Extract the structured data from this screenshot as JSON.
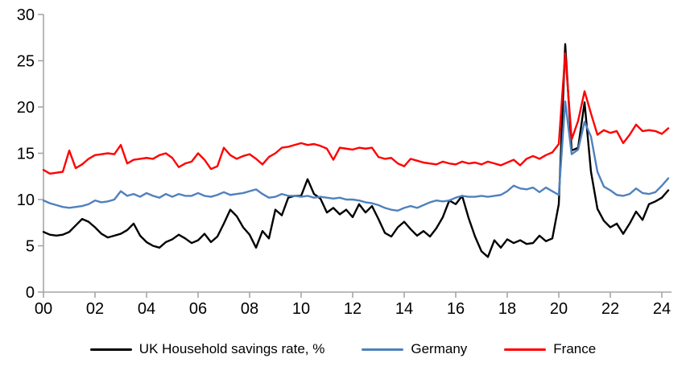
{
  "chart_data": {
    "type": "line",
    "title": "",
    "xlabel": "",
    "ylabel": "",
    "grid": false,
    "legend_position": "bottom",
    "x_axis": {
      "tick_labels": [
        "00",
        "02",
        "04",
        "06",
        "08",
        "10",
        "12",
        "14",
        "16",
        "18",
        "20",
        "22",
        "24"
      ],
      "tick_years": [
        2000,
        2002,
        2004,
        2006,
        2008,
        2010,
        2012,
        2014,
        2016,
        2018,
        2020,
        2022,
        2024
      ]
    },
    "y_axis": {
      "ticks": [
        0,
        5,
        10,
        15,
        20,
        25,
        30
      ],
      "ylim": [
        0,
        30
      ]
    },
    "frequency": "quarterly",
    "start_year": 2000,
    "categories": [
      "2000Q1",
      "2000Q2",
      "2000Q3",
      "2000Q4",
      "2001Q1",
      "2001Q2",
      "2001Q3",
      "2001Q4",
      "2002Q1",
      "2002Q2",
      "2002Q3",
      "2002Q4",
      "2003Q1",
      "2003Q2",
      "2003Q3",
      "2003Q4",
      "2004Q1",
      "2004Q2",
      "2004Q3",
      "2004Q4",
      "2005Q1",
      "2005Q2",
      "2005Q3",
      "2005Q4",
      "2006Q1",
      "2006Q2",
      "2006Q3",
      "2006Q4",
      "2007Q1",
      "2007Q2",
      "2007Q3",
      "2007Q4",
      "2008Q1",
      "2008Q2",
      "2008Q3",
      "2008Q4",
      "2009Q1",
      "2009Q2",
      "2009Q3",
      "2009Q4",
      "2010Q1",
      "2010Q2",
      "2010Q3",
      "2010Q4",
      "2011Q1",
      "2011Q2",
      "2011Q3",
      "2011Q4",
      "2012Q1",
      "2012Q2",
      "2012Q3",
      "2012Q4",
      "2013Q1",
      "2013Q2",
      "2013Q3",
      "2013Q4",
      "2014Q1",
      "2014Q2",
      "2014Q3",
      "2014Q4",
      "2015Q1",
      "2015Q2",
      "2015Q3",
      "2015Q4",
      "2016Q1",
      "2016Q2",
      "2016Q3",
      "2016Q4",
      "2017Q1",
      "2017Q2",
      "2017Q3",
      "2017Q4",
      "2018Q1",
      "2018Q2",
      "2018Q3",
      "2018Q4",
      "2019Q1",
      "2019Q2",
      "2019Q3",
      "2019Q4",
      "2020Q1",
      "2020Q2",
      "2020Q3",
      "2020Q4",
      "2021Q1",
      "2021Q2",
      "2021Q3",
      "2021Q4",
      "2022Q1",
      "2022Q2",
      "2022Q3",
      "2022Q4",
      "2023Q1",
      "2023Q2",
      "2023Q3",
      "2023Q4",
      "2024Q1",
      "2024Q2"
    ],
    "series": [
      {
        "name": "UK Household savings rate, %",
        "color": "#000000",
        "values": [
          6.5,
          6.2,
          6.1,
          6.2,
          6.5,
          7.2,
          7.9,
          7.6,
          7.0,
          6.3,
          5.9,
          6.1,
          6.3,
          6.7,
          7.4,
          6.1,
          5.4,
          5.0,
          4.8,
          5.4,
          5.7,
          6.2,
          5.8,
          5.3,
          5.6,
          6.3,
          5.4,
          6.0,
          7.4,
          8.9,
          8.2,
          7.0,
          6.2,
          4.8,
          6.6,
          5.8,
          8.9,
          8.3,
          10.2,
          10.4,
          10.4,
          12.2,
          10.6,
          10.1,
          8.6,
          9.1,
          8.4,
          8.9,
          8.1,
          9.5,
          8.6,
          9.3,
          7.9,
          6.4,
          6.0,
          7.0,
          7.6,
          6.8,
          6.1,
          6.6,
          6.0,
          6.9,
          8.1,
          9.9,
          9.5,
          10.4,
          8.0,
          6.0,
          4.4,
          3.8,
          5.6,
          4.8,
          5.7,
          5.3,
          5.6,
          5.2,
          5.3,
          6.1,
          5.5,
          5.8,
          9.5,
          26.8,
          15.3,
          15.6,
          20.5,
          13.0,
          9.0,
          7.7,
          7.0,
          7.4,
          6.3,
          7.4,
          8.7,
          7.8,
          9.5,
          9.8,
          10.2,
          11.0
        ]
      },
      {
        "name": "Germany",
        "color": "#4f81bd",
        "values": [
          9.9,
          9.6,
          9.4,
          9.2,
          9.1,
          9.2,
          9.3,
          9.5,
          9.9,
          9.7,
          9.8,
          10.0,
          10.9,
          10.4,
          10.6,
          10.3,
          10.7,
          10.4,
          10.2,
          10.6,
          10.3,
          10.6,
          10.4,
          10.4,
          10.7,
          10.4,
          10.3,
          10.5,
          10.8,
          10.5,
          10.6,
          10.7,
          10.9,
          11.1,
          10.6,
          10.2,
          10.3,
          10.6,
          10.4,
          10.4,
          10.3,
          10.4,
          10.2,
          10.3,
          10.2,
          10.1,
          10.2,
          10.0,
          10.0,
          9.9,
          9.7,
          9.6,
          9.4,
          9.1,
          8.9,
          8.8,
          9.1,
          9.3,
          9.1,
          9.4,
          9.7,
          9.9,
          9.8,
          9.9,
          10.2,
          10.4,
          10.3,
          10.3,
          10.4,
          10.3,
          10.4,
          10.5,
          10.9,
          11.5,
          11.2,
          11.1,
          11.3,
          10.8,
          11.3,
          10.9,
          10.5,
          20.6,
          14.9,
          15.4,
          18.4,
          16.8,
          13.0,
          11.4,
          11.0,
          10.5,
          10.4,
          10.6,
          11.2,
          10.7,
          10.6,
          10.8,
          11.5,
          12.3
        ]
      },
      {
        "name": "France",
        "color": "#ff0000",
        "values": [
          13.2,
          12.8,
          12.9,
          13.0,
          15.3,
          13.4,
          13.8,
          14.4,
          14.8,
          14.9,
          15.0,
          14.9,
          15.9,
          13.9,
          14.3,
          14.4,
          14.5,
          14.4,
          14.8,
          15.0,
          14.5,
          13.5,
          13.9,
          14.1,
          15.0,
          14.3,
          13.3,
          13.6,
          15.6,
          14.8,
          14.4,
          14.7,
          14.9,
          14.4,
          13.8,
          14.6,
          15.0,
          15.6,
          15.7,
          15.9,
          16.1,
          15.9,
          16.0,
          15.8,
          15.5,
          14.3,
          15.6,
          15.5,
          15.4,
          15.6,
          15.5,
          15.6,
          14.6,
          14.4,
          14.5,
          13.9,
          13.6,
          14.4,
          14.2,
          14.0,
          13.9,
          13.8,
          14.1,
          13.9,
          13.8,
          14.1,
          13.9,
          14.0,
          13.8,
          14.1,
          13.9,
          13.7,
          14.0,
          14.3,
          13.7,
          14.4,
          14.7,
          14.4,
          14.8,
          15.1,
          16.0,
          25.8,
          16.5,
          18.5,
          21.7,
          19.3,
          17.0,
          17.5,
          17.2,
          17.4,
          16.1,
          17.0,
          18.1,
          17.4,
          17.5,
          17.4,
          17.1,
          17.7
        ]
      }
    ],
    "axis_color": "#a6a6a6",
    "label_color": "#000000"
  }
}
